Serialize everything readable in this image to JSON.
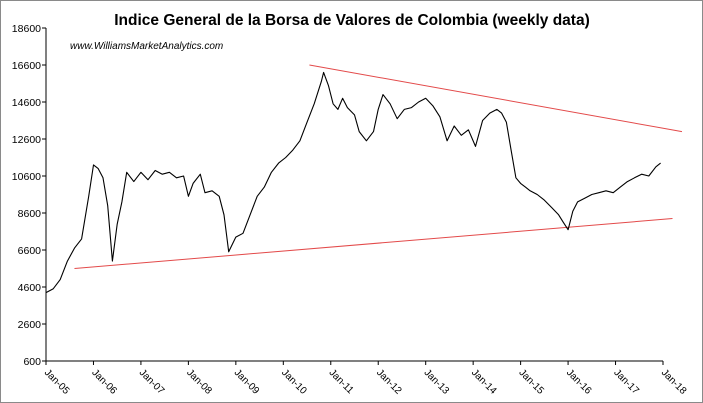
{
  "chart_data": {
    "type": "line",
    "title": "Indice General de la Borsa de Valores de Colombia (weekly data)",
    "watermark": "www.WilliamsMarketAnalytics.com",
    "xlabel": "",
    "ylabel": "",
    "ylim": [
      600,
      18600
    ],
    "yticks": [
      600,
      2600,
      4600,
      6600,
      8600,
      10600,
      12600,
      14600,
      16600,
      18600
    ],
    "xticks": [
      "Jan-05",
      "Jan-06",
      "Jan-07",
      "Jan-08",
      "Jan-09",
      "Jan-10",
      "Jan-11",
      "Jan-12",
      "Jan-13",
      "Jan-14",
      "Jan-15",
      "Jan-16",
      "Jan-17",
      "Jan-18"
    ],
    "xlim": [
      2005.0,
      2018.0
    ],
    "grid": false,
    "legend": "none",
    "series": [
      {
        "color": "#000000",
        "points": [
          [
            2005.0,
            4300
          ],
          [
            2005.15,
            4500
          ],
          [
            2005.3,
            5000
          ],
          [
            2005.45,
            6000
          ],
          [
            2005.6,
            6700
          ],
          [
            2005.75,
            7200
          ],
          [
            2005.9,
            9500
          ],
          [
            2006.0,
            11200
          ],
          [
            2006.1,
            11000
          ],
          [
            2006.2,
            10500
          ],
          [
            2006.3,
            9000
          ],
          [
            2006.4,
            6000
          ],
          [
            2006.5,
            8000
          ],
          [
            2006.6,
            9200
          ],
          [
            2006.7,
            10800
          ],
          [
            2006.85,
            10300
          ],
          [
            2007.0,
            10800
          ],
          [
            2007.15,
            10400
          ],
          [
            2007.3,
            10900
          ],
          [
            2007.45,
            10700
          ],
          [
            2007.6,
            10800
          ],
          [
            2007.75,
            10500
          ],
          [
            2007.9,
            10600
          ],
          [
            2008.0,
            9500
          ],
          [
            2008.1,
            10200
          ],
          [
            2008.25,
            10700
          ],
          [
            2008.35,
            9700
          ],
          [
            2008.5,
            9800
          ],
          [
            2008.65,
            9500
          ],
          [
            2008.75,
            8500
          ],
          [
            2008.85,
            6500
          ],
          [
            2009.0,
            7300
          ],
          [
            2009.15,
            7500
          ],
          [
            2009.3,
            8500
          ],
          [
            2009.45,
            9500
          ],
          [
            2009.6,
            10000
          ],
          [
            2009.75,
            10800
          ],
          [
            2009.9,
            11300
          ],
          [
            2010.05,
            11600
          ],
          [
            2010.2,
            12000
          ],
          [
            2010.35,
            12500
          ],
          [
            2010.5,
            13500
          ],
          [
            2010.65,
            14500
          ],
          [
            2010.8,
            15700
          ],
          [
            2010.85,
            16200
          ],
          [
            2010.95,
            15500
          ],
          [
            2011.05,
            14500
          ],
          [
            2011.15,
            14200
          ],
          [
            2011.25,
            14800
          ],
          [
            2011.35,
            14300
          ],
          [
            2011.5,
            13900
          ],
          [
            2011.6,
            13000
          ],
          [
            2011.75,
            12500
          ],
          [
            2011.9,
            13000
          ],
          [
            2012.0,
            14200
          ],
          [
            2012.1,
            15000
          ],
          [
            2012.25,
            14500
          ],
          [
            2012.4,
            13700
          ],
          [
            2012.55,
            14200
          ],
          [
            2012.7,
            14300
          ],
          [
            2012.85,
            14600
          ],
          [
            2013.0,
            14800
          ],
          [
            2013.15,
            14400
          ],
          [
            2013.3,
            13800
          ],
          [
            2013.45,
            12500
          ],
          [
            2013.6,
            13300
          ],
          [
            2013.75,
            12800
          ],
          [
            2013.9,
            13100
          ],
          [
            2014.05,
            12200
          ],
          [
            2014.2,
            13600
          ],
          [
            2014.35,
            14000
          ],
          [
            2014.5,
            14200
          ],
          [
            2014.6,
            14000
          ],
          [
            2014.7,
            13500
          ],
          [
            2014.8,
            12000
          ],
          [
            2014.9,
            10500
          ],
          [
            2015.0,
            10200
          ],
          [
            2015.1,
            10000
          ],
          [
            2015.2,
            9800
          ],
          [
            2015.35,
            9600
          ],
          [
            2015.5,
            9300
          ],
          [
            2015.65,
            8900
          ],
          [
            2015.8,
            8500
          ],
          [
            2015.9,
            8100
          ],
          [
            2016.0,
            7700
          ],
          [
            2016.1,
            8700
          ],
          [
            2016.2,
            9200
          ],
          [
            2016.35,
            9400
          ],
          [
            2016.5,
            9600
          ],
          [
            2016.65,
            9700
          ],
          [
            2016.8,
            9800
          ],
          [
            2016.95,
            9700
          ],
          [
            2017.1,
            10000
          ],
          [
            2017.25,
            10300
          ],
          [
            2017.4,
            10500
          ],
          [
            2017.55,
            10700
          ],
          [
            2017.7,
            10600
          ],
          [
            2017.85,
            11100
          ],
          [
            2017.95,
            11300
          ]
        ]
      }
    ],
    "trendlines": [
      {
        "color": "#e34a4a",
        "from": [
          2005.6,
          5600
        ],
        "to": [
          2018.2,
          8300
        ]
      },
      {
        "color": "#e34a4a",
        "from": [
          2010.55,
          16600
        ],
        "to": [
          2018.4,
          13000
        ]
      }
    ]
  }
}
